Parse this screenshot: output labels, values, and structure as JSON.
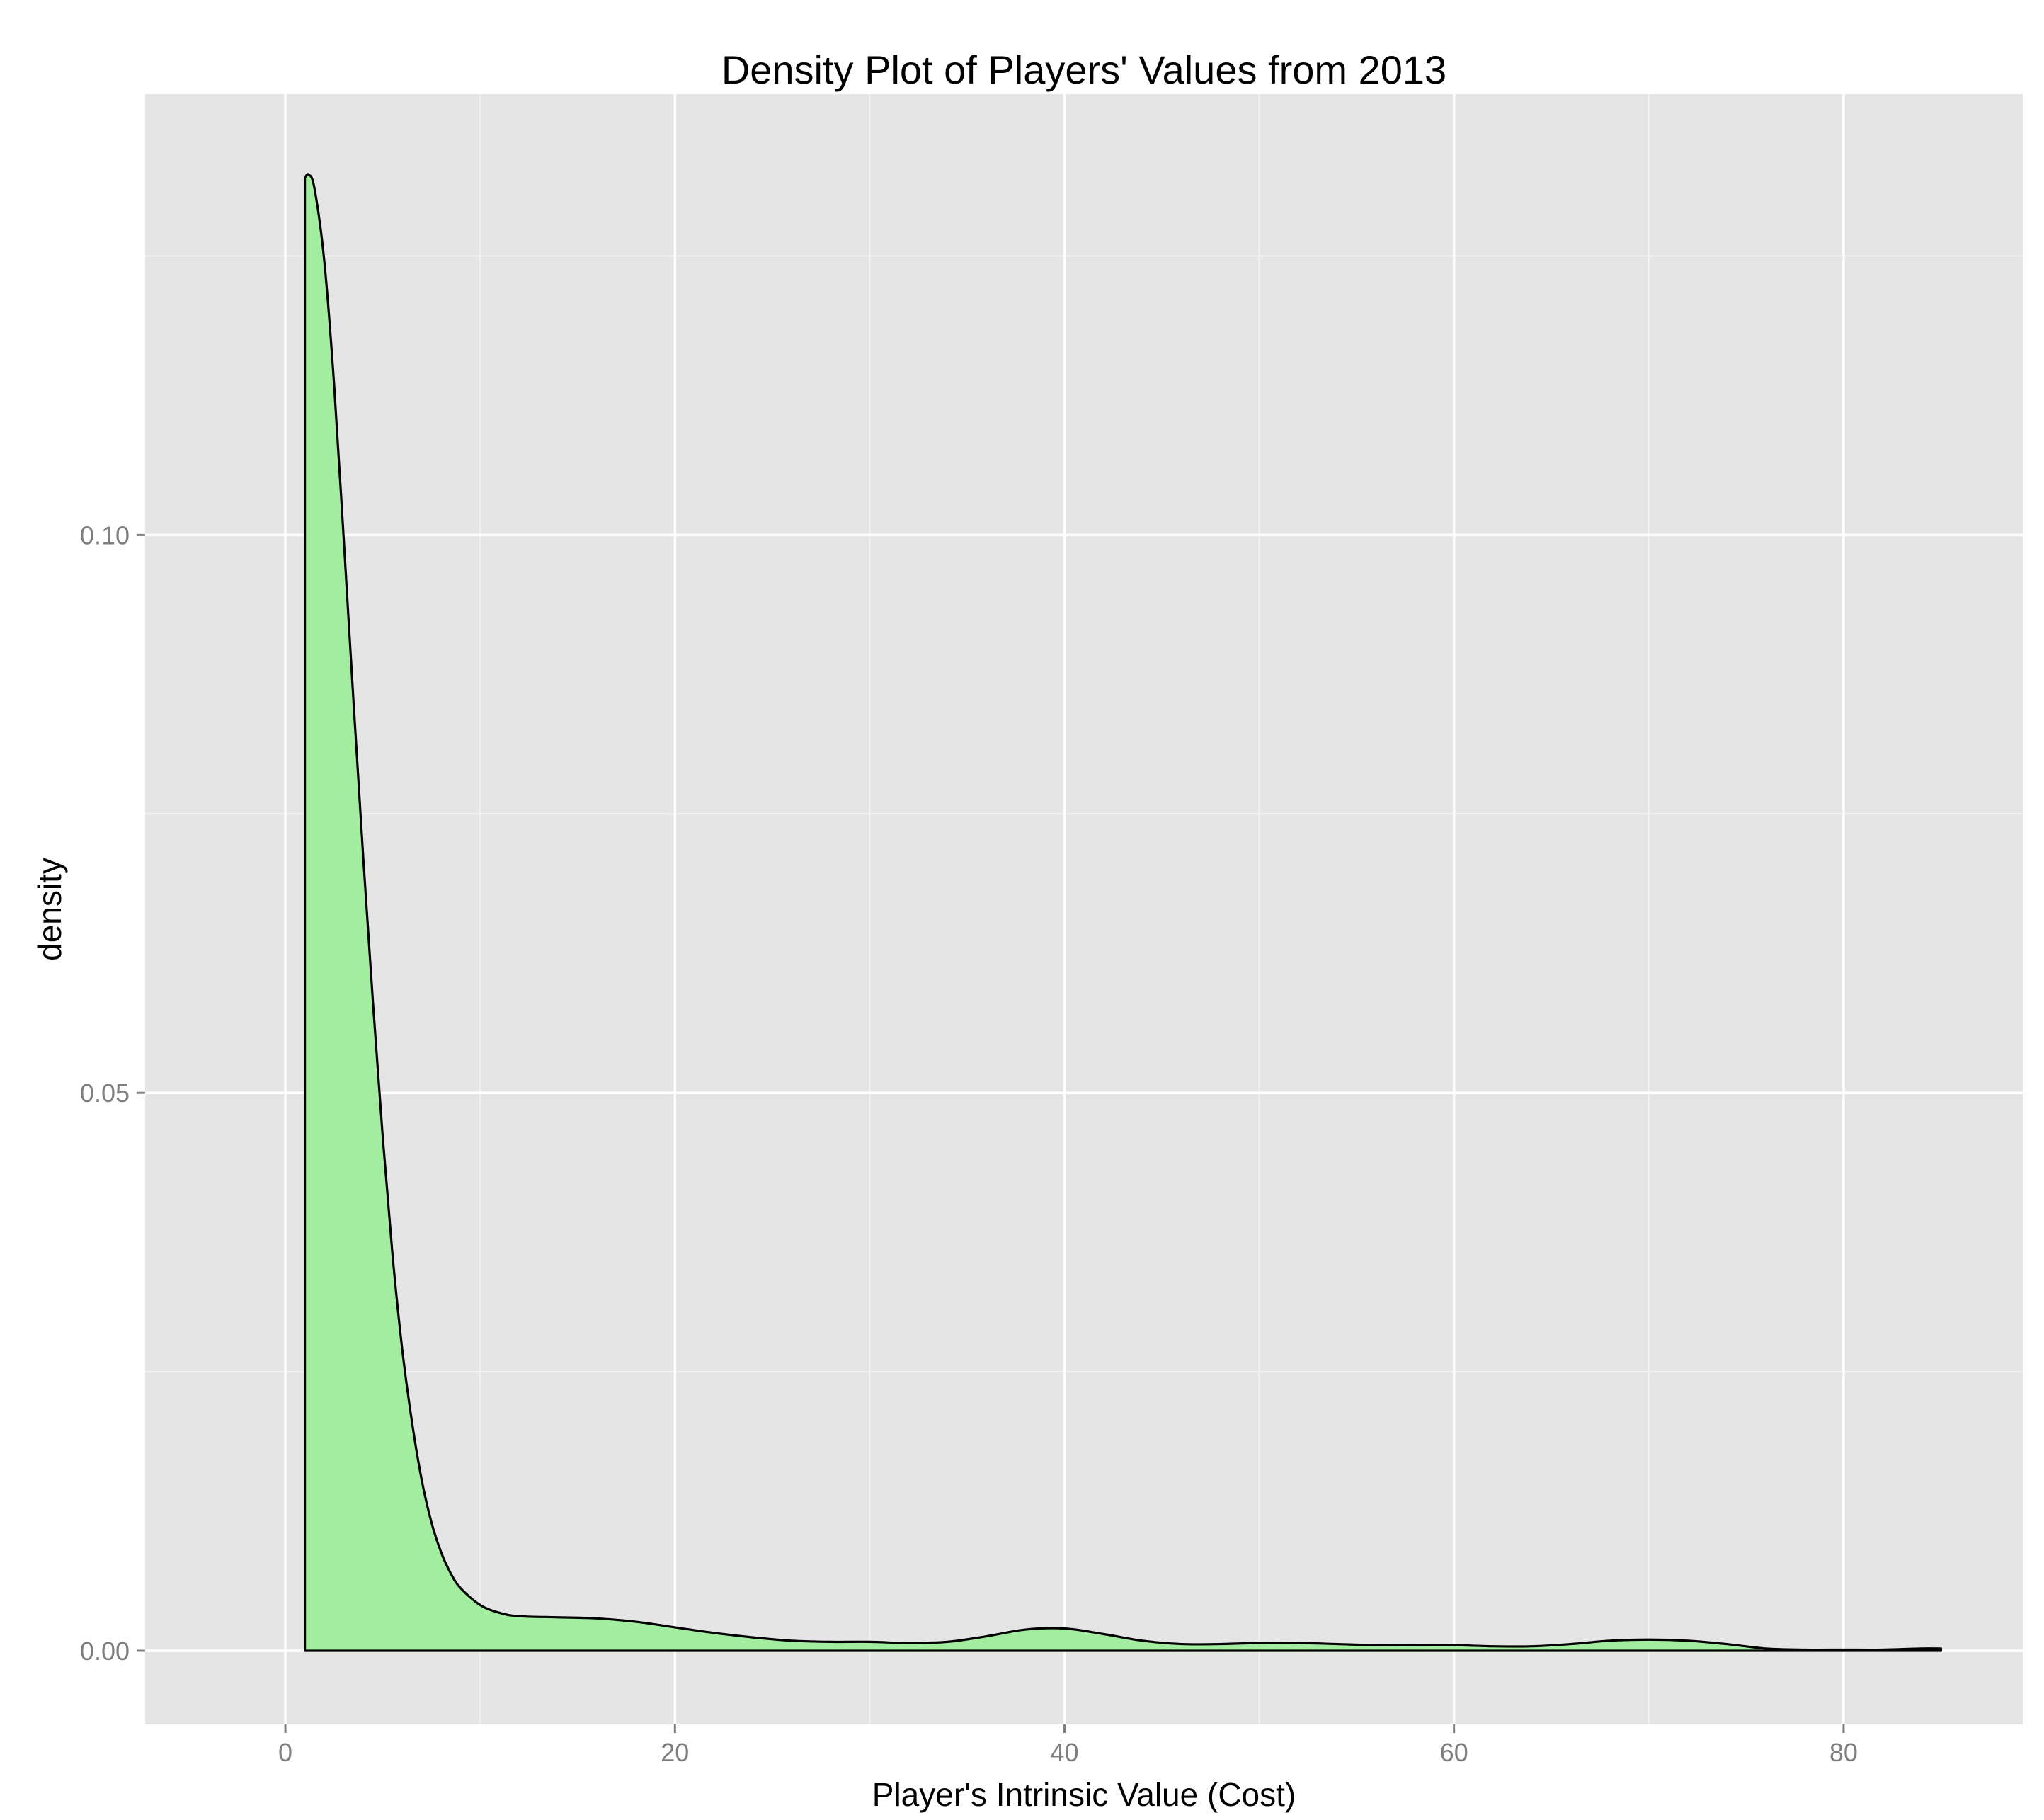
{
  "chart_data": {
    "type": "area",
    "title": "Density Plot of Players' Values from 2013",
    "xlabel": "Player's Intrinsic Value (Cost)",
    "ylabel": "density",
    "xlim": [
      -7.2,
      89.2
    ],
    "ylim": [
      -0.0066,
      0.1395
    ],
    "x_ticks": [
      0,
      20,
      40,
      60,
      80
    ],
    "x_tick_labels": [
      "0",
      "20",
      "40",
      "60",
      "80"
    ],
    "y_ticks": [
      0.0,
      0.05,
      0.1
    ],
    "y_tick_labels": [
      "0.00",
      "0.05",
      "0.10"
    ],
    "x_minor_ticks": [
      10,
      30,
      50,
      70
    ],
    "y_minor_ticks": [
      0.025,
      0.075,
      0.125
    ],
    "grid": true,
    "legend": "none",
    "colors": {
      "panel_background": "#e5e5e5",
      "grid_major": "#ffffff",
      "grid_minor": "#f2f2f2",
      "fill": "#a3eda0",
      "outline": "#000000",
      "tick_label": "#7f7f7f"
    },
    "series": [
      {
        "x": [
          1.0,
          1.2,
          1.5,
          2.0,
          2.5,
          3.0,
          3.5,
          4.0,
          4.5,
          5.0,
          5.5,
          6.0,
          6.5,
          7.0,
          7.5,
          8.0,
          8.5,
          9.0,
          10.0,
          11.0,
          12.0,
          14.0,
          16.0,
          18.0,
          20.0,
          22.0,
          24.0,
          26.0,
          28.0,
          30.0,
          32.0,
          34.0,
          36.0,
          38.0,
          40.0,
          42.0,
          44.0,
          46.0,
          48.0,
          50.0,
          52.0,
          54.0,
          56.0,
          58.0,
          60.0,
          62.0,
          64.0,
          66.0,
          68.0,
          70.0,
          72.0,
          74.0,
          76.0,
          78.0,
          80.0,
          82.0,
          84.0,
          85.0
        ],
        "y": [
          0.132,
          0.1323,
          0.131,
          0.1245,
          0.1135,
          0.0995,
          0.085,
          0.071,
          0.058,
          0.046,
          0.0355,
          0.027,
          0.0205,
          0.0153,
          0.0115,
          0.0088,
          0.0069,
          0.0056,
          0.0041,
          0.0034,
          0.0031,
          0.003,
          0.0029,
          0.0026,
          0.0021,
          0.0016,
          0.0012,
          0.0009,
          0.0008,
          0.0008,
          0.0007,
          0.0008,
          0.0013,
          0.0019,
          0.002,
          0.0015,
          0.0009,
          0.0006,
          0.0006,
          0.0007,
          0.0007,
          0.0006,
          0.0005,
          0.0005,
          0.0005,
          0.0004,
          0.0004,
          0.0006,
          0.0009,
          0.001,
          0.0009,
          0.0006,
          0.0002,
          0.0001,
          0.0001,
          0.0001,
          0.0002,
          0.0002
        ]
      }
    ]
  }
}
